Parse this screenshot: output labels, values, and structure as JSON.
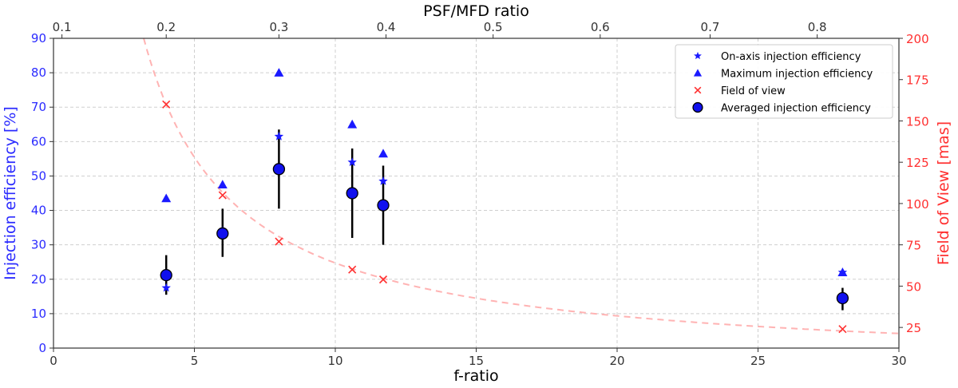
{
  "chart_data": {
    "type": "scatter",
    "title": "",
    "xlabel": "f-ratio",
    "ylabel": "Injection efficiency [%]",
    "y2label": "Field of View [mas]",
    "top_xlabel": "PSF/MFD ratio",
    "xlim": [
      0,
      30
    ],
    "ylim": [
      0,
      90
    ],
    "y2lim": [
      12.5,
      200
    ],
    "x_ticks": [
      "0",
      "5",
      "10",
      "15",
      "20",
      "25",
      "30"
    ],
    "y_ticks": [
      "0",
      "10",
      "20",
      "30",
      "40",
      "50",
      "60",
      "70",
      "80",
      "90"
    ],
    "y2_ticks": [
      "25",
      "50",
      "75",
      "100",
      "125",
      "150",
      "175",
      "200"
    ],
    "top_ticks": [
      {
        "label": "0.1",
        "x": 0.3
      },
      {
        "label": "0.2",
        "x": 4.0
      },
      {
        "label": "0.3",
        "x": 8.0
      },
      {
        "label": "0.4",
        "x": 11.8
      },
      {
        "label": "0.5",
        "x": 15.6
      },
      {
        "label": "0.6",
        "x": 19.4
      },
      {
        "label": "0.7",
        "x": 23.3
      },
      {
        "label": "0.8",
        "x": 27.1
      }
    ],
    "grid": true,
    "legend_position": "top-right",
    "colors": {
      "left_axis": "#2b2bff",
      "right_axis": "#ff3030",
      "on_axis": "#1a1aff",
      "maximum": "#1a1aff",
      "fov": "#ff3030",
      "averaged_fill": "#1010ee",
      "errorbar": "#000000",
      "curve": "#ffb3b3"
    },
    "series": [
      {
        "name": "On-axis injection efficiency",
        "marker": "star",
        "axis": "left",
        "points": [
          {
            "x": 4.0,
            "y": 17.5
          },
          {
            "x": 6.0,
            "y": 34.0
          },
          {
            "x": 8.0,
            "y": 61.5
          },
          {
            "x": 10.6,
            "y": 54.0
          },
          {
            "x": 11.7,
            "y": 48.5
          },
          {
            "x": 28.0,
            "y": 22.0
          }
        ]
      },
      {
        "name": "Maximum injection efficiency",
        "marker": "triangle",
        "axis": "left",
        "points": [
          {
            "x": 4.0,
            "y": 43.5
          },
          {
            "x": 6.0,
            "y": 47.5
          },
          {
            "x": 8.0,
            "y": 80.0
          },
          {
            "x": 10.6,
            "y": 65.0
          },
          {
            "x": 11.7,
            "y": 56.5
          },
          {
            "x": 28.0,
            "y": 22.0
          }
        ]
      },
      {
        "name": "Field of view",
        "marker": "x",
        "axis": "right",
        "points": [
          {
            "x": 4.0,
            "y": 160
          },
          {
            "x": 6.0,
            "y": 105
          },
          {
            "x": 8.0,
            "y": 77
          },
          {
            "x": 10.6,
            "y": 60
          },
          {
            "x": 11.7,
            "y": 54
          },
          {
            "x": 28.0,
            "y": 24
          }
        ]
      },
      {
        "name": "Averaged injection efficiency",
        "marker": "circle",
        "axis": "left",
        "points": [
          {
            "x": 4.0,
            "y": 21.2,
            "err_low": 15.5,
            "err_high": 27.0
          },
          {
            "x": 6.0,
            "y": 33.3,
            "err_low": 26.5,
            "err_high": 40.5
          },
          {
            "x": 8.0,
            "y": 52.0,
            "err_low": 40.5,
            "err_high": 63.5
          },
          {
            "x": 10.6,
            "y": 45.0,
            "err_low": 32.0,
            "err_high": 58.0
          },
          {
            "x": 11.7,
            "y": 41.5,
            "err_low": 30.0,
            "err_high": 53.0
          },
          {
            "x": 28.0,
            "y": 14.5,
            "err_low": 11.0,
            "err_high": 17.5
          }
        ]
      }
    ],
    "fov_curve": {
      "style": "dashed",
      "axis": "right",
      "constant": 640,
      "x_start": 3.2,
      "x_end": 30
    }
  }
}
